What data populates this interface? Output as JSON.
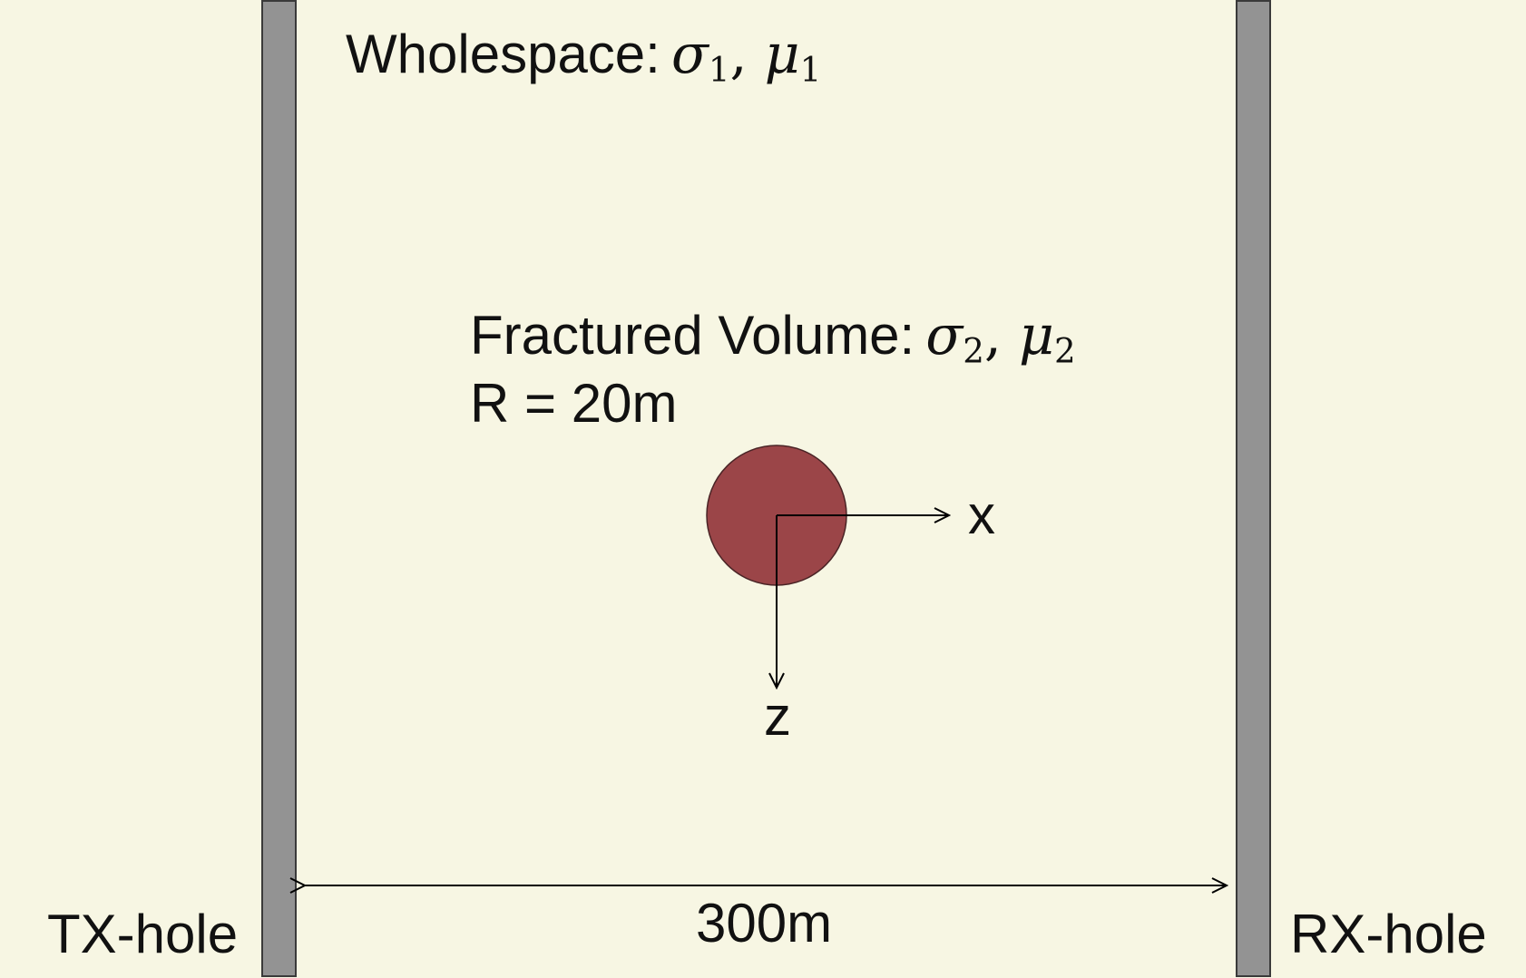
{
  "wholespace": {
    "label": "Wholespace:",
    "sigma": "σ",
    "sigma_sub": "1",
    "sep": ", ",
    "mu": "μ",
    "mu_sub": "1"
  },
  "fractured": {
    "label": "Fractured Volume:",
    "sigma": "σ",
    "sigma_sub": "2",
    "sep": ", ",
    "mu": "μ",
    "mu_sub": "2",
    "radius": "R = 20m"
  },
  "axes": {
    "x_label": "x",
    "z_label": "z"
  },
  "distance": {
    "label": "300m"
  },
  "boreholes": {
    "tx_label": "TX-hole",
    "rx_label": "RX-hole"
  },
  "colors": {
    "background": "#f7f6e3",
    "borehole_fill": "#939393",
    "sphere_fill": "#9b4548"
  }
}
